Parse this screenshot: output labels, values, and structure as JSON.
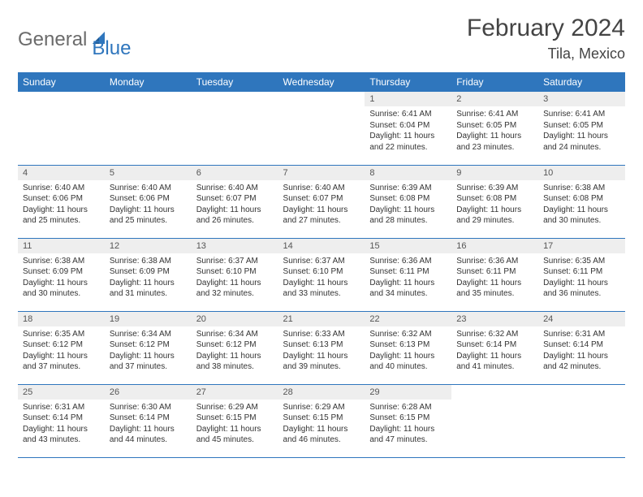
{
  "brand": {
    "part1": "General",
    "part2": "Blue",
    "color_gray": "#6b6b6b",
    "color_blue": "#2f76bd"
  },
  "title": "February 2024",
  "location": "Tila, Mexico",
  "header_bg": "#2f76bd",
  "header_fg": "#ffffff",
  "daynum_bg": "#eeeeee",
  "border_color": "#2f76bd",
  "day_names": [
    "Sunday",
    "Monday",
    "Tuesday",
    "Wednesday",
    "Thursday",
    "Friday",
    "Saturday"
  ],
  "weeks": [
    [
      {
        "n": "",
        "sr": "",
        "ss": "",
        "dl": ""
      },
      {
        "n": "",
        "sr": "",
        "ss": "",
        "dl": ""
      },
      {
        "n": "",
        "sr": "",
        "ss": "",
        "dl": ""
      },
      {
        "n": "",
        "sr": "",
        "ss": "",
        "dl": ""
      },
      {
        "n": "1",
        "sr": "Sunrise: 6:41 AM",
        "ss": "Sunset: 6:04 PM",
        "dl": "Daylight: 11 hours and 22 minutes."
      },
      {
        "n": "2",
        "sr": "Sunrise: 6:41 AM",
        "ss": "Sunset: 6:05 PM",
        "dl": "Daylight: 11 hours and 23 minutes."
      },
      {
        "n": "3",
        "sr": "Sunrise: 6:41 AM",
        "ss": "Sunset: 6:05 PM",
        "dl": "Daylight: 11 hours and 24 minutes."
      }
    ],
    [
      {
        "n": "4",
        "sr": "Sunrise: 6:40 AM",
        "ss": "Sunset: 6:06 PM",
        "dl": "Daylight: 11 hours and 25 minutes."
      },
      {
        "n": "5",
        "sr": "Sunrise: 6:40 AM",
        "ss": "Sunset: 6:06 PM",
        "dl": "Daylight: 11 hours and 25 minutes."
      },
      {
        "n": "6",
        "sr": "Sunrise: 6:40 AM",
        "ss": "Sunset: 6:07 PM",
        "dl": "Daylight: 11 hours and 26 minutes."
      },
      {
        "n": "7",
        "sr": "Sunrise: 6:40 AM",
        "ss": "Sunset: 6:07 PM",
        "dl": "Daylight: 11 hours and 27 minutes."
      },
      {
        "n": "8",
        "sr": "Sunrise: 6:39 AM",
        "ss": "Sunset: 6:08 PM",
        "dl": "Daylight: 11 hours and 28 minutes."
      },
      {
        "n": "9",
        "sr": "Sunrise: 6:39 AM",
        "ss": "Sunset: 6:08 PM",
        "dl": "Daylight: 11 hours and 29 minutes."
      },
      {
        "n": "10",
        "sr": "Sunrise: 6:38 AM",
        "ss": "Sunset: 6:08 PM",
        "dl": "Daylight: 11 hours and 30 minutes."
      }
    ],
    [
      {
        "n": "11",
        "sr": "Sunrise: 6:38 AM",
        "ss": "Sunset: 6:09 PM",
        "dl": "Daylight: 11 hours and 30 minutes."
      },
      {
        "n": "12",
        "sr": "Sunrise: 6:38 AM",
        "ss": "Sunset: 6:09 PM",
        "dl": "Daylight: 11 hours and 31 minutes."
      },
      {
        "n": "13",
        "sr": "Sunrise: 6:37 AM",
        "ss": "Sunset: 6:10 PM",
        "dl": "Daylight: 11 hours and 32 minutes."
      },
      {
        "n": "14",
        "sr": "Sunrise: 6:37 AM",
        "ss": "Sunset: 6:10 PM",
        "dl": "Daylight: 11 hours and 33 minutes."
      },
      {
        "n": "15",
        "sr": "Sunrise: 6:36 AM",
        "ss": "Sunset: 6:11 PM",
        "dl": "Daylight: 11 hours and 34 minutes."
      },
      {
        "n": "16",
        "sr": "Sunrise: 6:36 AM",
        "ss": "Sunset: 6:11 PM",
        "dl": "Daylight: 11 hours and 35 minutes."
      },
      {
        "n": "17",
        "sr": "Sunrise: 6:35 AM",
        "ss": "Sunset: 6:11 PM",
        "dl": "Daylight: 11 hours and 36 minutes."
      }
    ],
    [
      {
        "n": "18",
        "sr": "Sunrise: 6:35 AM",
        "ss": "Sunset: 6:12 PM",
        "dl": "Daylight: 11 hours and 37 minutes."
      },
      {
        "n": "19",
        "sr": "Sunrise: 6:34 AM",
        "ss": "Sunset: 6:12 PM",
        "dl": "Daylight: 11 hours and 37 minutes."
      },
      {
        "n": "20",
        "sr": "Sunrise: 6:34 AM",
        "ss": "Sunset: 6:12 PM",
        "dl": "Daylight: 11 hours and 38 minutes."
      },
      {
        "n": "21",
        "sr": "Sunrise: 6:33 AM",
        "ss": "Sunset: 6:13 PM",
        "dl": "Daylight: 11 hours and 39 minutes."
      },
      {
        "n": "22",
        "sr": "Sunrise: 6:32 AM",
        "ss": "Sunset: 6:13 PM",
        "dl": "Daylight: 11 hours and 40 minutes."
      },
      {
        "n": "23",
        "sr": "Sunrise: 6:32 AM",
        "ss": "Sunset: 6:14 PM",
        "dl": "Daylight: 11 hours and 41 minutes."
      },
      {
        "n": "24",
        "sr": "Sunrise: 6:31 AM",
        "ss": "Sunset: 6:14 PM",
        "dl": "Daylight: 11 hours and 42 minutes."
      }
    ],
    [
      {
        "n": "25",
        "sr": "Sunrise: 6:31 AM",
        "ss": "Sunset: 6:14 PM",
        "dl": "Daylight: 11 hours and 43 minutes."
      },
      {
        "n": "26",
        "sr": "Sunrise: 6:30 AM",
        "ss": "Sunset: 6:14 PM",
        "dl": "Daylight: 11 hours and 44 minutes."
      },
      {
        "n": "27",
        "sr": "Sunrise: 6:29 AM",
        "ss": "Sunset: 6:15 PM",
        "dl": "Daylight: 11 hours and 45 minutes."
      },
      {
        "n": "28",
        "sr": "Sunrise: 6:29 AM",
        "ss": "Sunset: 6:15 PM",
        "dl": "Daylight: 11 hours and 46 minutes."
      },
      {
        "n": "29",
        "sr": "Sunrise: 6:28 AM",
        "ss": "Sunset: 6:15 PM",
        "dl": "Daylight: 11 hours and 47 minutes."
      },
      {
        "n": "",
        "sr": "",
        "ss": "",
        "dl": ""
      },
      {
        "n": "",
        "sr": "",
        "ss": "",
        "dl": ""
      }
    ]
  ]
}
